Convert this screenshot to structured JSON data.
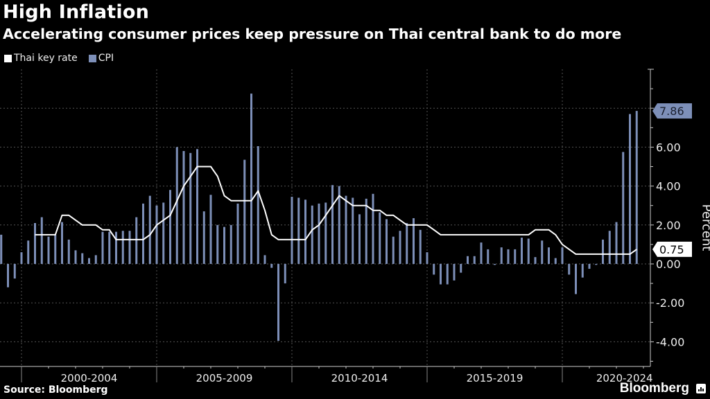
{
  "header": {
    "title": "High Inflation",
    "subtitle": "Accelerating consumer prices keep pressure on Thai central bank to do more"
  },
  "footer": {
    "source": "Source: Bloomberg",
    "brand": "Bloomberg"
  },
  "colors": {
    "background": "#000000",
    "key_rate": "#ffffff",
    "cpi": "#7d8fb8",
    "grid": "#555555",
    "axis": "#cccccc"
  },
  "chart_data": {
    "type": "bar+line",
    "title": "High Inflation",
    "subtitle": "Accelerating consumer prices keep pressure on Thai central bank to do more",
    "ylabel": "Percent",
    "xlabel": "",
    "frequency": "quarterly",
    "x_start_year": 1999.25,
    "x_step_years": 0.25,
    "xlim": [
      1999.2,
      2023.25
    ],
    "ylim": [
      -5,
      10
    ],
    "y_ticks": [
      -4,
      -2,
      0,
      2,
      4,
      6,
      8
    ],
    "y_tick_labels": [
      "-4.00",
      "-2.00",
      "0.00",
      "2.00",
      "4.00",
      "6.00",
      ""
    ],
    "x_major_ticks": [
      2000,
      2005,
      2010,
      2015,
      2020
    ],
    "x_tick_labels": [
      {
        "label": "2000-2004",
        "center": 2002.5
      },
      {
        "label": "2005-2009",
        "center": 2007.5
      },
      {
        "label": "2010-2014",
        "center": 2012.5
      },
      {
        "label": "2015-2019",
        "center": 2017.5
      },
      {
        "label": "2020-2024",
        "center": 2022.3
      }
    ],
    "grid": true,
    "legend": {
      "position": "top-left",
      "entries": [
        "Thai key rate",
        "CPI"
      ]
    },
    "series": [
      {
        "name": "CPI",
        "type": "bar",
        "values": [
          1.5,
          -1.2,
          -0.75,
          0.6,
          1.2,
          2.1,
          2.4,
          1.4,
          1.5,
          2.15,
          1.25,
          0.7,
          0.55,
          0.3,
          0.45,
          1.65,
          1.65,
          1.65,
          1.7,
          1.7,
          2.4,
          3.1,
          3.5,
          3.0,
          3.15,
          3.8,
          6.0,
          5.8,
          5.7,
          5.9,
          2.7,
          3.55,
          2.0,
          1.9,
          2.0,
          3.1,
          5.35,
          8.75,
          6.05,
          0.45,
          -0.2,
          -3.95,
          -1.0,
          3.45,
          3.4,
          3.3,
          3.0,
          3.1,
          3.15,
          4.05,
          4.0,
          3.5,
          3.4,
          2.55,
          3.35,
          3.6,
          2.65,
          2.3,
          1.4,
          1.7,
          2.1,
          2.35,
          1.75,
          0.6,
          -0.55,
          -1.05,
          -1.05,
          -0.85,
          -0.45,
          0.4,
          0.4,
          1.1,
          0.75,
          -0.05,
          0.85,
          0.75,
          0.75,
          1.35,
          1.3,
          0.35,
          1.2,
          0.85,
          0.3,
          0.85,
          -0.55,
          -1.55,
          -0.7,
          -0.25,
          -0.05,
          1.25,
          1.7,
          2.15,
          5.75,
          7.7,
          7.86
        ],
        "last_value_label": "7.86"
      },
      {
        "name": "Thai key rate",
        "type": "line",
        "values": [
          null,
          null,
          null,
          null,
          null,
          1.5,
          1.5,
          1.5,
          1.5,
          2.5,
          2.5,
          2.25,
          2.0,
          2.0,
          2.0,
          1.75,
          1.75,
          1.25,
          1.25,
          1.25,
          1.25,
          1.25,
          1.5,
          2.0,
          2.25,
          2.5,
          3.25,
          4.0,
          4.5,
          5.0,
          5.0,
          5.0,
          4.5,
          3.5,
          3.25,
          3.25,
          3.25,
          3.25,
          3.75,
          2.75,
          1.5,
          1.25,
          1.25,
          1.25,
          1.25,
          1.25,
          1.75,
          2.0,
          2.5,
          3.0,
          3.5,
          3.25,
          3.0,
          3.0,
          3.0,
          2.75,
          2.75,
          2.5,
          2.5,
          2.25,
          2.0,
          2.0,
          2.0,
          2.0,
          1.75,
          1.5,
          1.5,
          1.5,
          1.5,
          1.5,
          1.5,
          1.5,
          1.5,
          1.5,
          1.5,
          1.5,
          1.5,
          1.5,
          1.5,
          1.75,
          1.75,
          1.75,
          1.5,
          1.0,
          0.75,
          0.5,
          0.5,
          0.5,
          0.5,
          0.5,
          0.5,
          0.5,
          0.5,
          0.5,
          0.75
        ],
        "last_value_label": "0.75"
      }
    ]
  }
}
